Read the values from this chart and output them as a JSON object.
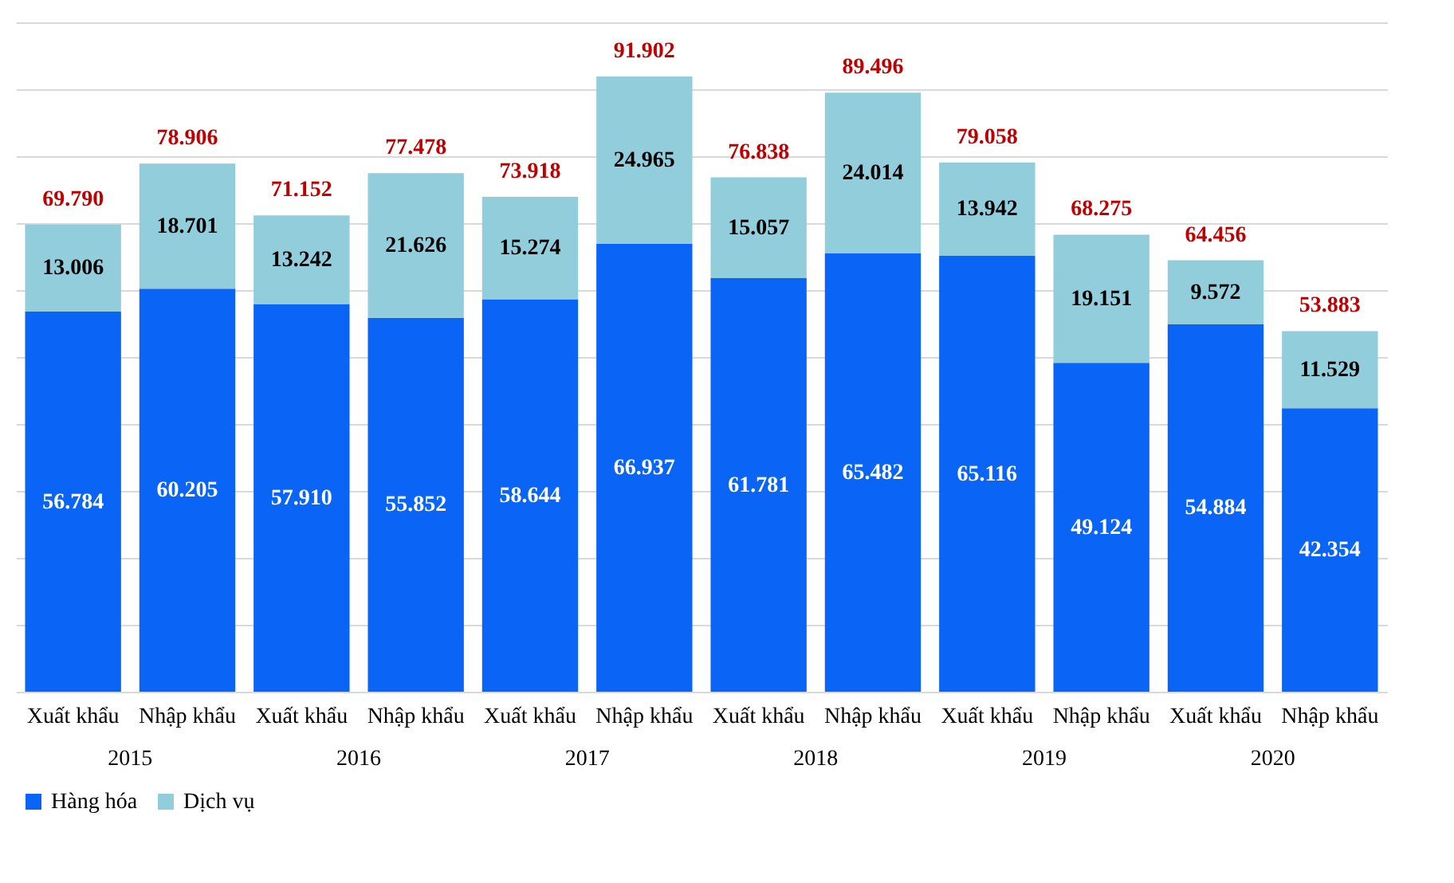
{
  "chart_data": {
    "type": "bar",
    "stacked": true,
    "categories": [
      "Xuất khẩu",
      "Nhập khẩu",
      "Xuất khẩu",
      "Nhập khẩu",
      "Xuất khẩu",
      "Nhập khẩu",
      "Xuất khẩu",
      "Nhập khẩu",
      "Xuất khẩu",
      "Nhập khẩu",
      "Xuất khẩu",
      "Nhập khẩu"
    ],
    "series": [
      {
        "name": "Hàng hóa",
        "color": "#0a64f5",
        "values": [
          56.784,
          60.205,
          57.91,
          55.852,
          58.644,
          66.937,
          61.781,
          65.482,
          65.116,
          49.124,
          54.884,
          42.354
        ],
        "value_labels": [
          "56.784",
          "60.205",
          "57.910",
          "55.852",
          "58.644",
          "66.937",
          "61.781",
          "65.482",
          "65.116",
          "49.124",
          "54.884",
          "42.354"
        ]
      },
      {
        "name": "Dịch vụ",
        "color": "#92cddc",
        "values": [
          13.006,
          18.701,
          13.242,
          21.626,
          15.274,
          24.965,
          15.057,
          24.014,
          13.942,
          19.151,
          9.572,
          11.529
        ],
        "value_labels": [
          "13.006",
          "18.701",
          "13.242",
          "21.626",
          "15.274",
          "24.965",
          "15.057",
          "24.014",
          "13.942",
          "19.151",
          "9.572",
          "11.529"
        ]
      }
    ],
    "totals": [
      "69.790",
      "78.906",
      "71.152",
      "77.478",
      "73.918",
      "91.902",
      "76.838",
      "89.496",
      "79.058",
      "68.275",
      "64.456",
      "53.883"
    ],
    "annotations": [
      "2015",
      "2016",
      "2017",
      "2018",
      "2019",
      "2020"
    ],
    "ylim": [
      0,
      100
    ],
    "yticks": [
      {
        "value": 0,
        "label": null
      },
      {
        "value": 10,
        "label": null
      },
      {
        "value": 20,
        "label": null
      },
      {
        "value": 30,
        "label": null
      },
      {
        "value": 40,
        "label": null
      },
      {
        "value": 50,
        "label": null
      },
      {
        "value": 60,
        "label": null
      },
      {
        "value": 70,
        "label": null
      },
      {
        "value": 80,
        "label": null
      },
      {
        "value": 90,
        "label": null
      },
      {
        "value": 100,
        "label": null
      }
    ],
    "grid": "y",
    "legend": "bottom",
    "tick_labels": "x"
  }
}
